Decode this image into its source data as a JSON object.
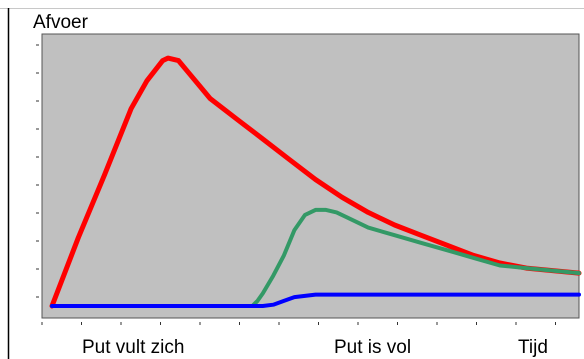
{
  "chart_data": {
    "type": "line",
    "title": "",
    "ylabel": "Afvoer",
    "xlabel": "Tijd",
    "annotations": [
      "Put vult zich",
      "Put is vol"
    ],
    "xlim": [
      0,
      100
    ],
    "ylim": [
      0,
      100
    ],
    "grid": false,
    "legend": "none",
    "series": [
      {
        "color": "#ff0000",
        "x": [
          0,
          5,
          10,
          15,
          18,
          21,
          22,
          24,
          26,
          28,
          30,
          35,
          40,
          45,
          50,
          55,
          60,
          65,
          70,
          75,
          80,
          85,
          90,
          95,
          100
        ],
        "y": [
          0,
          27,
          52,
          78,
          89,
          97,
          98,
          97,
          92,
          87,
          82,
          74,
          66,
          58,
          50,
          43,
          37,
          32,
          28,
          24,
          20,
          17,
          15,
          14,
          13
        ]
      },
      {
        "color": "#339966",
        "x": [
          0,
          38,
          39,
          40,
          42,
          44,
          46,
          48,
          50,
          52,
          54,
          56,
          60,
          65,
          70,
          75,
          80,
          85,
          90,
          95,
          100
        ],
        "y": [
          0,
          0,
          2,
          5,
          12,
          20,
          30,
          36,
          38,
          38,
          37,
          35,
          31,
          28,
          25,
          22,
          19,
          16,
          15,
          14,
          13
        ]
      },
      {
        "color": "#0000ff",
        "x": [
          0,
          40,
          42,
          44,
          46,
          50,
          100
        ],
        "y": [
          0,
          0,
          0.5,
          2,
          3.5,
          4.5,
          4.5
        ]
      }
    ]
  }
}
